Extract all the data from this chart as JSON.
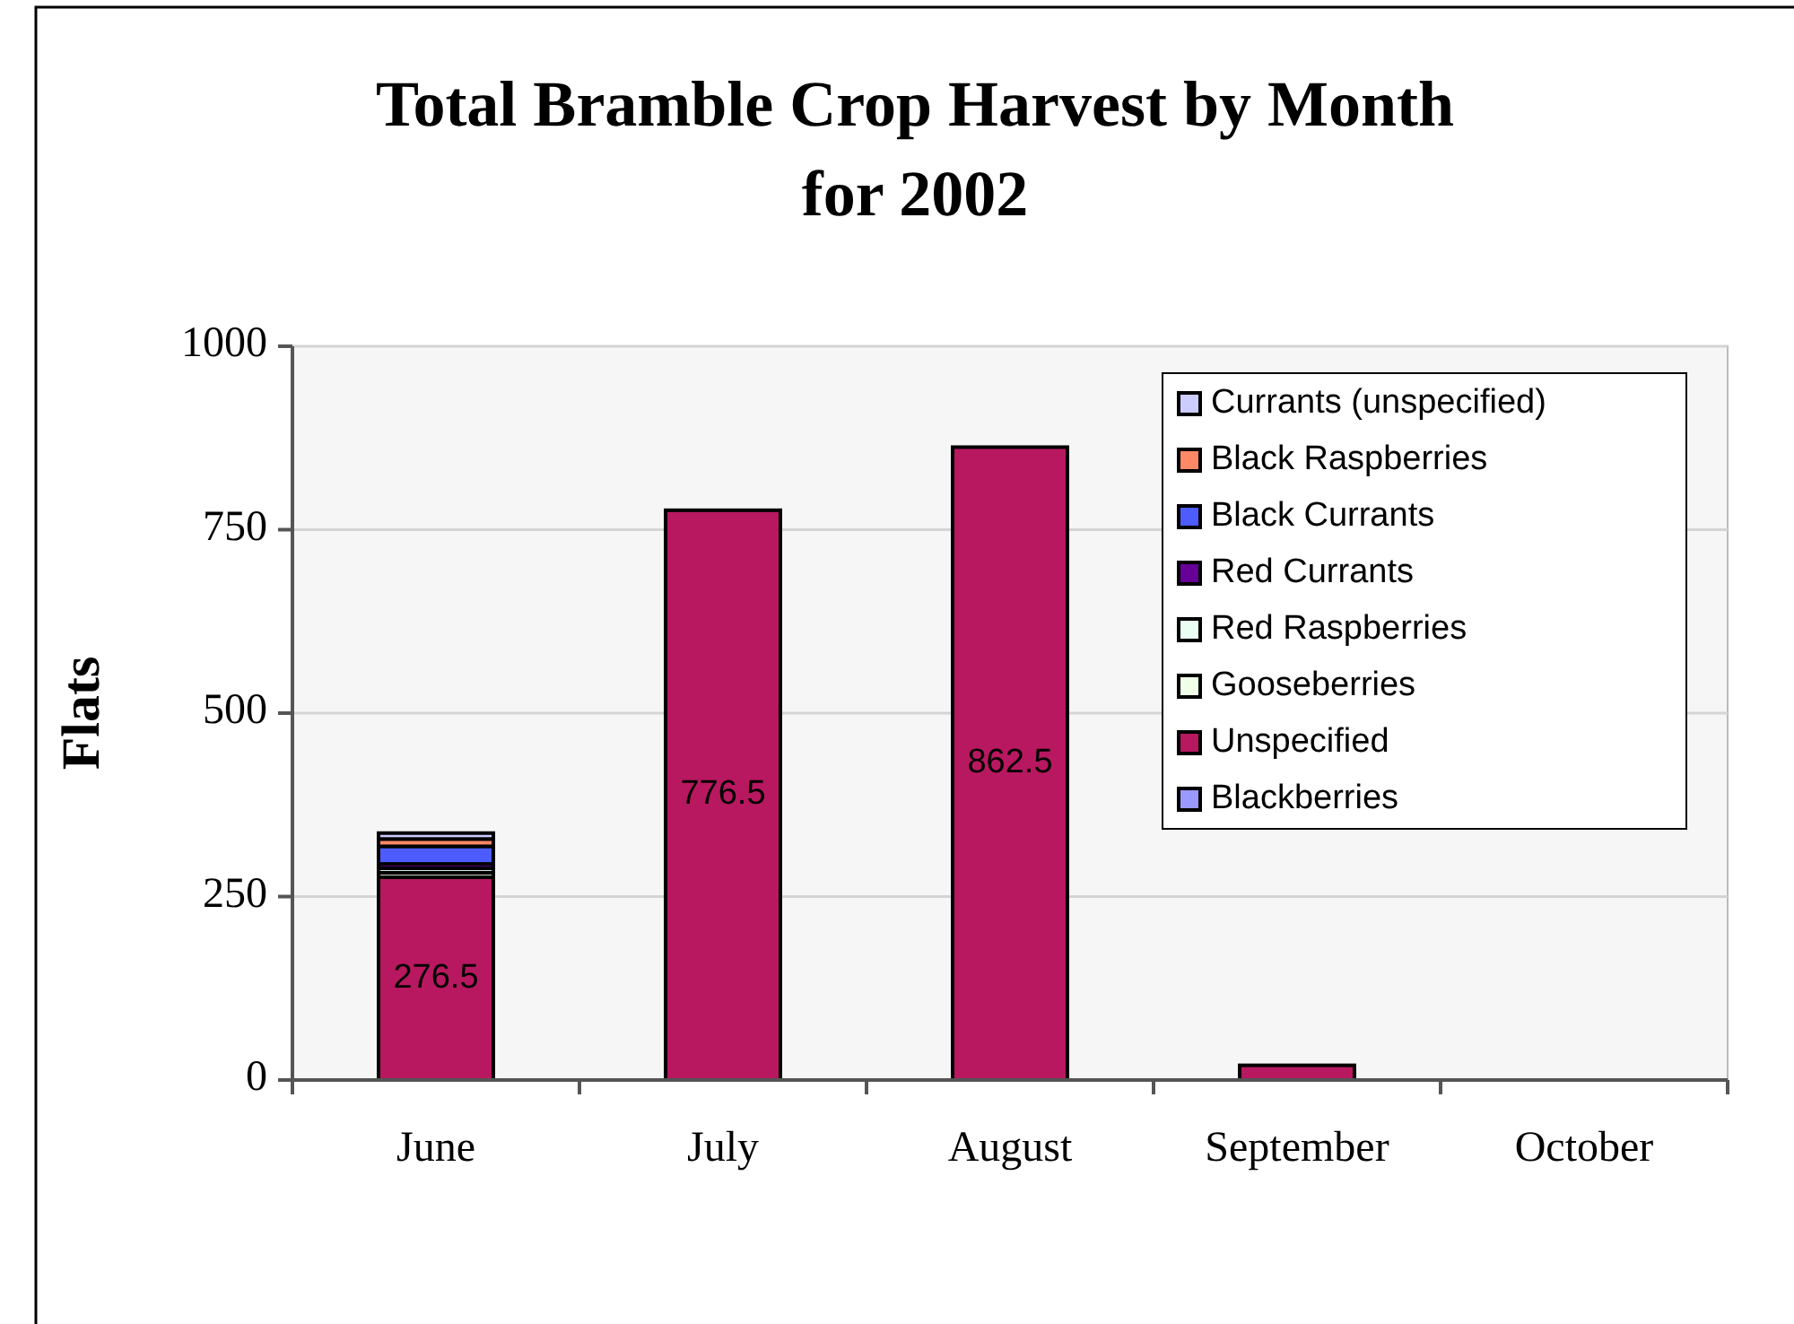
{
  "chart_data": {
    "type": "bar",
    "title": "Total Bramble Crop Harvest by Month for 2002",
    "ylabel": "Flats",
    "categories": [
      "June",
      "July",
      "August",
      "September",
      "October"
    ],
    "stacked": true,
    "ylim": [
      0,
      1000
    ],
    "yticks": [
      0,
      250,
      500,
      750,
      1000
    ],
    "grid": "y",
    "legend": "top right",
    "series": [
      {
        "name": "Blackberries",
        "color": "#9999ff",
        "values": [
          0,
          0,
          0,
          0,
          0
        ]
      },
      {
        "name": "Unspecified",
        "color": "#b81860",
        "values": [
          276.5,
          776.5,
          862.5,
          20,
          0
        ],
        "value_labels": [
          "276.5",
          "776.5",
          "862.5",
          null,
          null
        ]
      },
      {
        "name": "Gooseberries",
        "color": "#f0ffe8",
        "values": [
          6,
          0,
          0,
          0,
          0
        ]
      },
      {
        "name": "Red Raspberries",
        "color": "#eafff4",
        "values": [
          6,
          0,
          0,
          0,
          0
        ]
      },
      {
        "name": "Red Currants",
        "color": "#660099",
        "values": [
          6,
          0,
          0,
          0,
          0
        ]
      },
      {
        "name": "Black Currants",
        "color": "#4d5cff",
        "values": [
          24,
          0,
          0,
          0,
          0
        ]
      },
      {
        "name": "Black Raspberries",
        "color": "#ff8866",
        "values": [
          10,
          0,
          0,
          0,
          0
        ]
      },
      {
        "name": "Currants (unspecified)",
        "color": "#ccccff",
        "values": [
          8,
          0,
          0,
          0,
          0
        ]
      }
    ]
  }
}
